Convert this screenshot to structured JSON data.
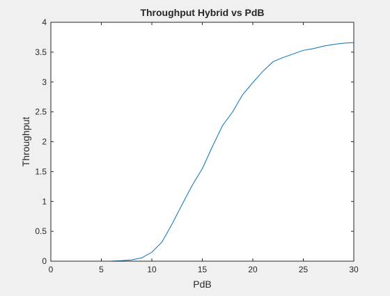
{
  "chart_data": {
    "type": "line",
    "title": "Throughput Hybrid vs PdB",
    "xlabel": "PdB",
    "ylabel": "Throughput",
    "xlim": [
      0,
      30
    ],
    "ylim": [
      0,
      4
    ],
    "xticks": [
      0,
      5,
      10,
      15,
      20,
      25,
      30
    ],
    "yticks": [
      0,
      0.5,
      1,
      1.5,
      2,
      2.5,
      3,
      3.5,
      4
    ],
    "xtick_labels": [
      "0",
      "5",
      "10",
      "15",
      "20",
      "25",
      "30"
    ],
    "ytick_labels": [
      "0",
      "0.5",
      "1",
      "1.5",
      "2",
      "2.5",
      "3",
      "3.5",
      "4"
    ],
    "grid": false,
    "series": [
      {
        "color": "#0072bd",
        "x": [
          1,
          2,
          3,
          4,
          5,
          6,
          7,
          8,
          9,
          10,
          11,
          12,
          13,
          14,
          15,
          16,
          17,
          18,
          19,
          20,
          21,
          22,
          23,
          24,
          25,
          26,
          27,
          28,
          29,
          30
        ],
        "y": [
          0,
          0,
          0,
          0,
          0,
          0.002,
          0.008,
          0.022,
          0.055,
          0.15,
          0.32,
          0.62,
          0.95,
          1.27,
          1.55,
          1.92,
          2.27,
          2.5,
          2.79,
          2.99,
          3.18,
          3.34,
          3.41,
          3.47,
          3.53,
          3.56,
          3.6,
          3.63,
          3.65,
          3.66
        ]
      }
    ]
  }
}
